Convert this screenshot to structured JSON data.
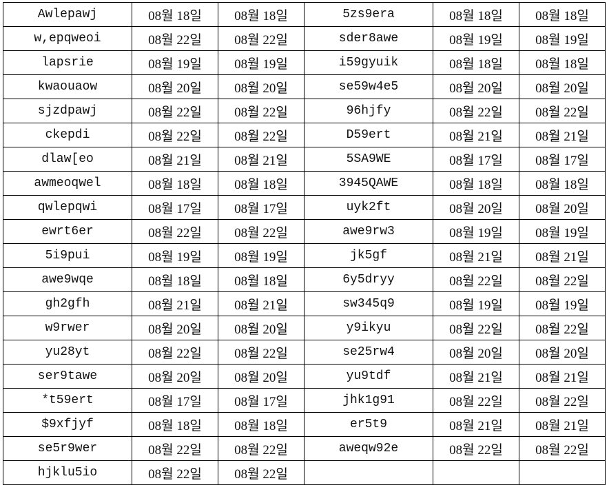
{
  "sheet": {
    "rows": [
      [
        "Awlepawj",
        "08월 18일",
        "08월 18일",
        "5zs9era",
        "08월 18일",
        "08월 18일"
      ],
      [
        "w,epqweoi",
        "08월 22일",
        "08월 22일",
        "sder8awe",
        "08월 19일",
        "08월 19일"
      ],
      [
        "lapsrie",
        "08월 19일",
        "08월 19일",
        "i59gyuik",
        "08월 18일",
        "08월 18일"
      ],
      [
        "kwaouaow",
        "08월 20일",
        "08월 20일",
        "se59w4e5",
        "08월 20일",
        "08월 20일"
      ],
      [
        "sjzdpawj",
        "08월 22일",
        "08월 22일",
        "96hjfy",
        "08월 22일",
        "08월 22일"
      ],
      [
        "ckepdi",
        "08월 22일",
        "08월 22일",
        "D59ert",
        "08월 21일",
        "08월 21일"
      ],
      [
        "dlaw[eo",
        "08월 21일",
        "08월 21일",
        "5SA9WE",
        "08월 17일",
        "08월 17일"
      ],
      [
        "awmeoqwel",
        "08월 18일",
        "08월 18일",
        "3945QAWE",
        "08월 18일",
        "08월 18일"
      ],
      [
        "qwlepqwi",
        "08월 17일",
        "08월 17일",
        "uyk2ft",
        "08월 20일",
        "08월 20일"
      ],
      [
        "ewrt6er",
        "08월 22일",
        "08월 22일",
        "awe9rw3",
        "08월 19일",
        "08월 19일"
      ],
      [
        "5i9pui",
        "08월 19일",
        "08월 19일",
        "jk5gf",
        "08월 21일",
        "08월 21일"
      ],
      [
        "awe9wqe",
        "08월 18일",
        "08월 18일",
        "6y5dryy",
        "08월 22일",
        "08월 22일"
      ],
      [
        "gh2gfh",
        "08월 21일",
        "08월 21일",
        "sw345q9",
        "08월 19일",
        "08월 19일"
      ],
      [
        "w9rwer",
        "08월 20일",
        "08월 20일",
        "y9ikyu",
        "08월 22일",
        "08월 22일"
      ],
      [
        "yu28yt",
        "08월 22일",
        "08월 22일",
        "se25rw4",
        "08월 20일",
        "08월 20일"
      ],
      [
        "ser9tawe",
        "08월 20일",
        "08월 20일",
        "yu9tdf",
        "08월 21일",
        "08월 21일"
      ],
      [
        "*t59ert",
        "08월 17일",
        "08월 17일",
        "jhk1g91",
        "08월 22일",
        "08월 22일"
      ],
      [
        "$9xfjyf",
        "08월 18일",
        "08월 18일",
        "er5t9",
        "08월 21일",
        "08월 21일"
      ],
      [
        "se5r9wer",
        "08월 22일",
        "08월 22일",
        "aweqw92e",
        "08월 22일",
        "08월 22일"
      ],
      [
        "hjklu5io",
        "08월 22일",
        "08월 22일",
        "",
        "",
        ""
      ]
    ]
  }
}
